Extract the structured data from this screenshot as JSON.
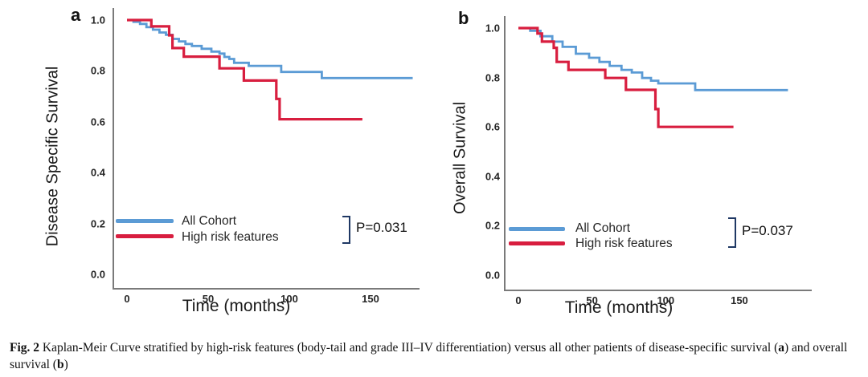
{
  "colors": {
    "all_cohort_blue": "#5B9BD5",
    "high_risk_red": "#D81E3F",
    "bracket_navy": "#1F3864",
    "axis_gray": "#7A7A7A"
  },
  "caption": {
    "label": "Fig. 2",
    "text_before_a": " Kaplan-Meir Curve stratified by high-risk features (body-tail and grade III–IV differentiation) versus all other patients of disease-specific survival (",
    "bold_a": "a",
    "text_mid": ") and overall survival (",
    "bold_b": "b",
    "text_after": ")"
  },
  "chart_data": [
    {
      "id": "a",
      "type": "line",
      "panel_label": "a",
      "xlabel": "Time (months)",
      "ylabel": "Disease Specific Survival",
      "xlim": [
        0,
        180
      ],
      "ylim": [
        0.0,
        1.0
      ],
      "x_ticks": [
        0,
        50,
        100,
        150
      ],
      "y_ticks": [
        "1.0",
        "0.8",
        "0.6",
        "0.4",
        "0.2",
        "0.0"
      ],
      "grid": false,
      "legend_position": "lower-left-inside",
      "p_value_label": "P=0.031",
      "series": [
        {
          "name": "All Cohort",
          "color": "#5B9BD5",
          "points": [
            [
              0,
              1.0
            ],
            [
              4,
              0.993
            ],
            [
              8,
              0.985
            ],
            [
              12,
              0.972
            ],
            [
              16,
              0.962
            ],
            [
              20,
              0.951
            ],
            [
              24,
              0.942
            ],
            [
              28,
              0.926
            ],
            [
              32,
              0.916
            ],
            [
              36,
              0.906
            ],
            [
              40,
              0.898
            ],
            [
              46,
              0.887
            ],
            [
              52,
              0.876
            ],
            [
              57,
              0.868
            ],
            [
              60,
              0.855
            ],
            [
              63,
              0.847
            ],
            [
              66,
              0.832
            ],
            [
              75,
              0.82
            ],
            [
              95,
              0.796
            ],
            [
              120,
              0.772
            ],
            [
              176,
              0.772
            ]
          ]
        },
        {
          "name": "High risk features",
          "color": "#D81E3F",
          "points": [
            [
              0,
              1.0
            ],
            [
              15,
              0.975
            ],
            [
              26,
              0.94
            ],
            [
              28,
              0.89
            ],
            [
              35,
              0.856
            ],
            [
              57,
              0.81
            ],
            [
              72,
              0.762
            ],
            [
              92,
              0.69
            ],
            [
              94,
              0.61
            ],
            [
              145,
              0.61
            ]
          ]
        }
      ]
    },
    {
      "id": "b",
      "type": "line",
      "panel_label": "b",
      "xlabel": "Time (months)",
      "ylabel": "Overall Survival",
      "xlim": [
        0,
        180
      ],
      "ylim": [
        0.0,
        1.0
      ],
      "x_ticks": [
        0,
        50,
        100,
        150
      ],
      "y_ticks": [
        "1.0",
        "0.8",
        "0.6",
        "0.4",
        "0.2",
        "0.0"
      ],
      "grid": false,
      "legend_position": "lower-left-inside",
      "p_value_label": "P=0.037",
      "series": [
        {
          "name": "All Cohort",
          "color": "#5B9BD5",
          "points": [
            [
              0,
              1.0
            ],
            [
              8,
              0.989
            ],
            [
              15,
              0.967
            ],
            [
              23,
              0.945
            ],
            [
              30,
              0.924
            ],
            [
              39,
              0.896
            ],
            [
              48,
              0.88
            ],
            [
              55,
              0.863
            ],
            [
              62,
              0.847
            ],
            [
              70,
              0.831
            ],
            [
              77,
              0.82
            ],
            [
              84,
              0.798
            ],
            [
              90,
              0.787
            ],
            [
              95,
              0.776
            ],
            [
              120,
              0.749
            ],
            [
              183,
              0.749
            ]
          ]
        },
        {
          "name": "High risk features",
          "color": "#D81E3F",
          "points": [
            [
              0,
              1.0
            ],
            [
              13,
              0.978
            ],
            [
              16,
              0.945
            ],
            [
              24,
              0.92
            ],
            [
              26,
              0.863
            ],
            [
              34,
              0.831
            ],
            [
              59,
              0.798
            ],
            [
              73,
              0.75
            ],
            [
              93,
              0.672
            ],
            [
              95,
              0.6
            ],
            [
              146,
              0.6
            ]
          ]
        }
      ]
    }
  ]
}
